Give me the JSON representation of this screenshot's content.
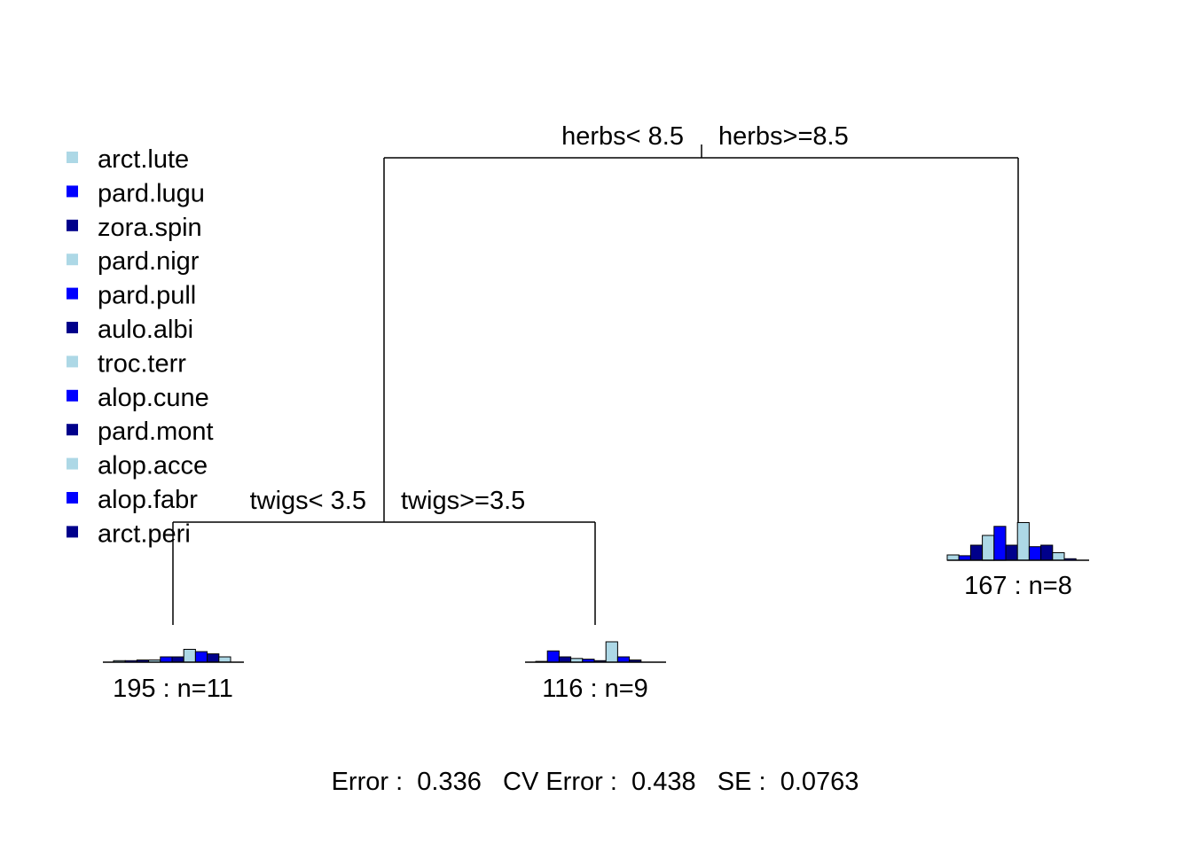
{
  "colors": {
    "light_blue": "#add8e6",
    "blue": "#0000ff",
    "dark_blue": "#00008b"
  },
  "legend": [
    {
      "label": "arct.lute",
      "color": "#add8e6"
    },
    {
      "label": "pard.lugu",
      "color": "#0000ff"
    },
    {
      "label": "zora.spin",
      "color": "#00008b"
    },
    {
      "label": "pard.nigr",
      "color": "#add8e6"
    },
    {
      "label": "pard.pull",
      "color": "#0000ff"
    },
    {
      "label": "aulo.albi",
      "color": "#00008b"
    },
    {
      "label": "troc.terr",
      "color": "#add8e6"
    },
    {
      "label": "alop.cune",
      "color": "#0000ff"
    },
    {
      "label": "pard.mont",
      "color": "#00008b"
    },
    {
      "label": "alop.acce",
      "color": "#add8e6"
    },
    {
      "label": "alop.fabr",
      "color": "#0000ff"
    },
    {
      "label": "arct.peri",
      "color": "#00008b"
    }
  ],
  "splits": {
    "root": {
      "left_label": "herbs< 8.5",
      "right_label": "herbs>=8.5"
    },
    "second": {
      "left_label": "twigs< 3.5",
      "right_label": "twigs>=3.5"
    }
  },
  "leaves": [
    {
      "id": "leaf-1",
      "label": "195 : n=11",
      "relative_abundance": [
        0.02,
        0.02,
        0.03,
        0.03,
        0.07,
        0.07,
        0.17,
        0.14,
        0.11,
        0.07,
        0.0,
        0.0
      ]
    },
    {
      "id": "leaf-2",
      "label": "116 : n=9",
      "relative_abundance": [
        0.01,
        0.15,
        0.07,
        0.05,
        0.04,
        0.02,
        0.27,
        0.07,
        0.03,
        0.0,
        0.0,
        0.0
      ]
    },
    {
      "id": "leaf-3",
      "label": "167 : n=8",
      "relative_abundance": [
        0.07,
        0.06,
        0.2,
        0.33,
        0.45,
        0.2,
        0.5,
        0.18,
        0.2,
        0.1,
        0.02,
        0.0
      ]
    }
  ],
  "footer": {
    "error_label": "Error :",
    "error_value": "0.336",
    "cv_error_label": "CV Error :",
    "cv_error_value": "0.438",
    "se_label": "SE :",
    "se_value": "0.0763"
  }
}
